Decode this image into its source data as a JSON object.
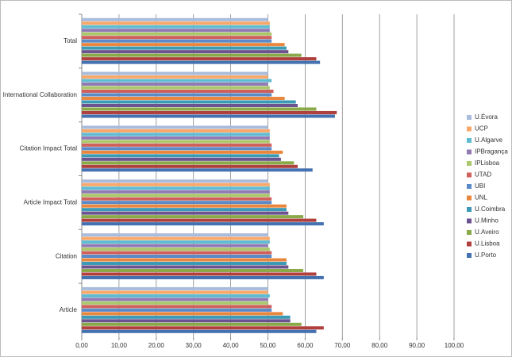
{
  "chart_data": {
    "type": "hbar",
    "categories": [
      "Article",
      "Citation",
      "Article Impact Total",
      "Citation Impact Total",
      "International Collaboration",
      "Total"
    ],
    "series": [
      {
        "name": "U.Évora",
        "color": "#a9bcdc",
        "values": [
          50,
          50,
          50,
          50,
          50,
          50
        ]
      },
      {
        "name": "UCP",
        "color": "#f9a86a",
        "values": [
          50,
          50.5,
          50.5,
          50.5,
          50,
          50.5
        ]
      },
      {
        "name": "U.Algarve",
        "color": "#5fbcd3",
        "values": [
          50.5,
          50.5,
          50.5,
          50.5,
          51,
          50.5
        ]
      },
      {
        "name": "IPBragança",
        "color": "#9179b4",
        "values": [
          50,
          50,
          50.5,
          50.5,
          50,
          50.5
        ]
      },
      {
        "name": "IPLisboa",
        "color": "#abc86c",
        "values": [
          50,
          50.5,
          50.5,
          50.5,
          50.5,
          51
        ]
      },
      {
        "name": "UTAD",
        "color": "#cf605c",
        "values": [
          51,
          51,
          51,
          51,
          51.5,
          51
        ]
      },
      {
        "name": "UBI",
        "color": "#5a8bc8",
        "values": [
          51,
          51,
          51,
          51,
          51,
          51
        ]
      },
      {
        "name": "UNL",
        "color": "#e8873d",
        "values": [
          54,
          55,
          55,
          54,
          54.5,
          54.5
        ]
      },
      {
        "name": "U.Coimbra",
        "color": "#3c9ab4",
        "values": [
          56,
          55,
          55,
          53,
          57.5,
          55
        ]
      },
      {
        "name": "U.Minho",
        "color": "#6c5390",
        "values": [
          56,
          55.5,
          55.5,
          53.5,
          58,
          55.5
        ]
      },
      {
        "name": "U.Aveiro",
        "color": "#8aaa4a",
        "values": [
          59,
          59.5,
          59.5,
          57,
          63,
          59
        ]
      },
      {
        "name": "U.Lisboa",
        "color": "#b0403d",
        "values": [
          65,
          63,
          63,
          58,
          68.5,
          63
        ]
      },
      {
        "name": "U.Porto",
        "color": "#4472b0",
        "values": [
          63,
          65,
          65,
          62,
          68,
          64
        ]
      }
    ],
    "xlim": [
      0,
      100
    ],
    "xticks": [
      {
        "value": 0,
        "label": "0,00"
      },
      {
        "value": 10,
        "label": "10,00"
      },
      {
        "value": 20,
        "label": "20,00"
      },
      {
        "value": 30,
        "label": "30,00"
      },
      {
        "value": 40,
        "label": "40,00"
      },
      {
        "value": 50,
        "label": "50,00"
      },
      {
        "value": 60,
        "label": "60,00"
      },
      {
        "value": 70,
        "label": "70,00"
      },
      {
        "value": 80,
        "label": "80,00"
      },
      {
        "value": 90,
        "label": "90,00"
      },
      {
        "value": 100,
        "label": "100,00"
      }
    ],
    "grid": true,
    "legend": "right"
  }
}
